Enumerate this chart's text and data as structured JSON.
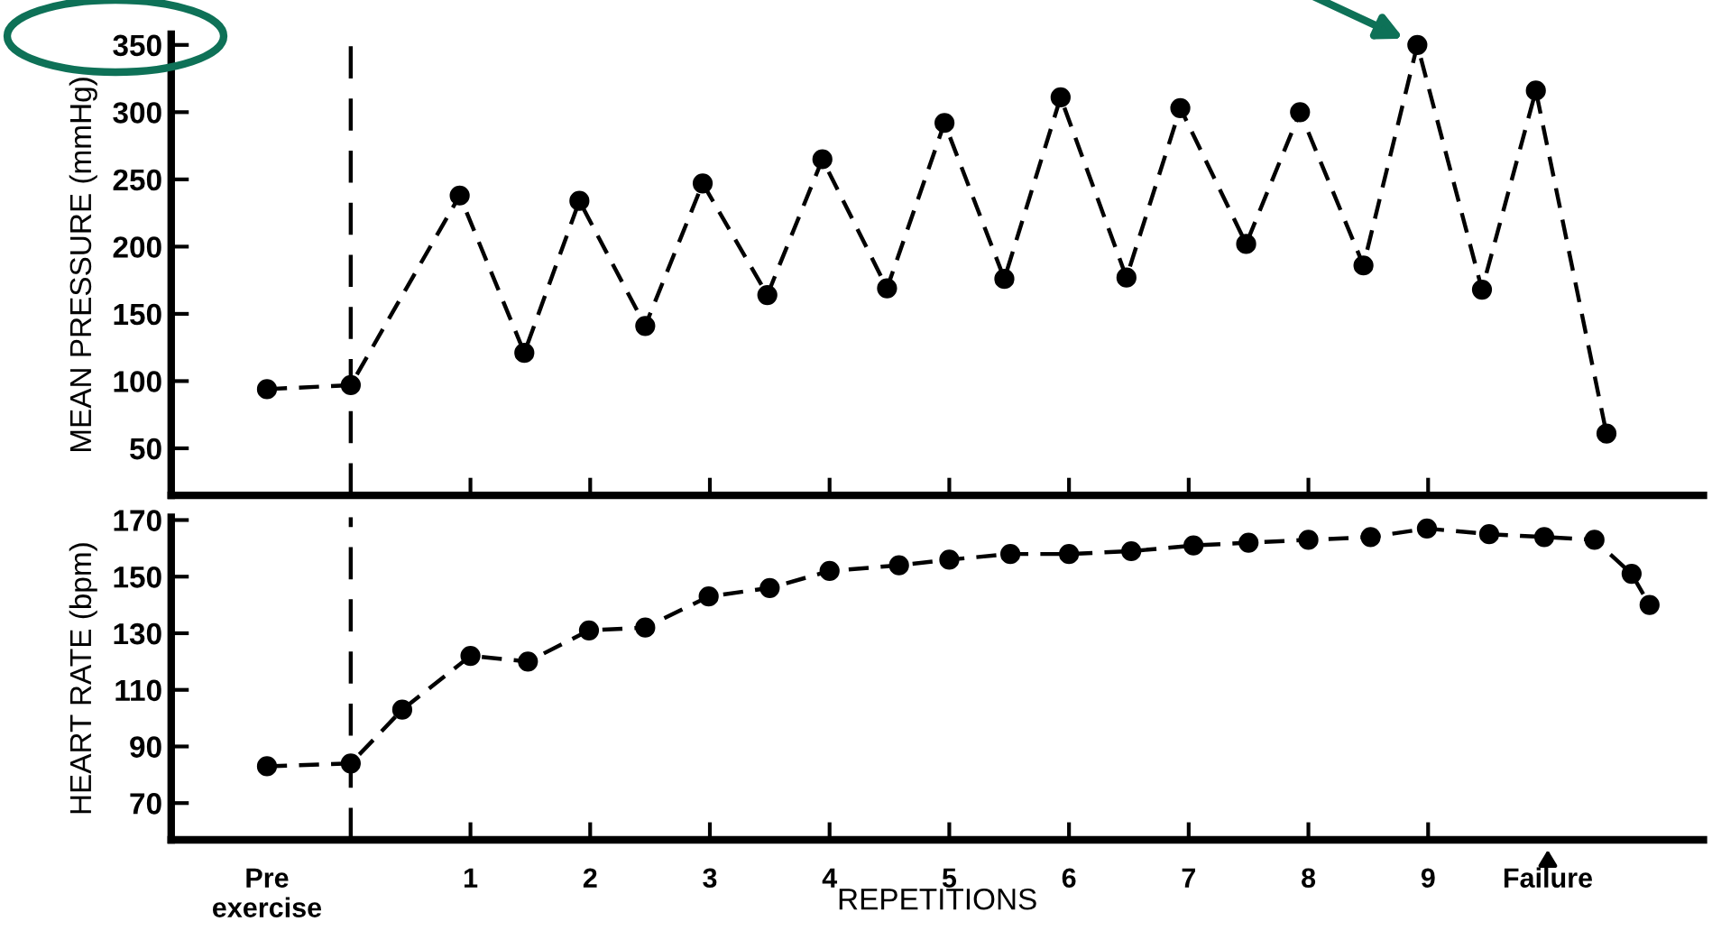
{
  "chart_data": [
    {
      "type": "line",
      "ylabel": "MEAN PRESSURE (mmHg)",
      "tick_labels": "y",
      "marker": "circle",
      "line_style": "dashed",
      "grid": false,
      "series": [
        {
          "color": "#000000",
          "x": [
            -0.7,
            0,
            0.91,
            1.45,
            1.91,
            2.46,
            2.94,
            3.48,
            3.94,
            4.48,
            4.96,
            5.46,
            5.93,
            6.48,
            6.93,
            7.48,
            7.93,
            8.46,
            8.91,
            9.45,
            9.9,
            10.49
          ],
          "values": [
            94,
            97,
            238,
            121,
            234,
            141,
            247,
            164,
            265,
            169,
            292,
            176,
            311,
            177,
            303,
            202,
            300,
            186,
            350,
            168,
            316,
            61
          ]
        }
      ],
      "xlim": [
        -1.5,
        11.3
      ],
      "ylim": [
        15,
        358
      ],
      "yticks": [
        50,
        100,
        150,
        200,
        250,
        300,
        350
      ],
      "xticks": [
        1,
        2,
        3,
        4,
        5,
        6,
        7,
        8,
        9
      ],
      "ref_lines": [
        {
          "axis": "x",
          "value": 0,
          "color": "#000000",
          "line_style": "dashed"
        }
      ]
    },
    {
      "type": "line",
      "xlabel": "REPETITIONS",
      "ylabel": "HEART RATE (bpm)",
      "marker": "circle",
      "line_style": "dashed",
      "grid": false,
      "series": [
        {
          "color": "#000000",
          "x": [
            -0.7,
            0,
            0.43,
            1,
            1.48,
            1.99,
            2.46,
            2.99,
            3.5,
            4.0,
            4.58,
            5.0,
            5.51,
            6.0,
            6.52,
            7.04,
            7.5,
            8.0,
            8.52,
            8.99,
            9.51,
            9.97,
            10.39,
            10.7,
            10.85
          ],
          "values": [
            83,
            84,
            103,
            122,
            120,
            131,
            132,
            143,
            146,
            152,
            154,
            156,
            158,
            158,
            159,
            161,
            162,
            163,
            164,
            167,
            165,
            164,
            163,
            151,
            140
          ]
        }
      ],
      "xlim": [
        -1.5,
        11.3
      ],
      "ylim": [
        57,
        171
      ],
      "yticks": [
        70,
        90,
        110,
        130,
        150,
        170
      ],
      "xticks": [
        {
          "value": -0.7,
          "label": "Pre\nexercise"
        },
        1,
        2,
        3,
        4,
        5,
        6,
        7,
        8,
        9,
        {
          "value": 10,
          "label": "Failure"
        }
      ],
      "ref_lines": [
        {
          "axis": "x",
          "value": 0,
          "color": "#000000",
          "line_style": "dashed"
        }
      ]
    }
  ]
}
